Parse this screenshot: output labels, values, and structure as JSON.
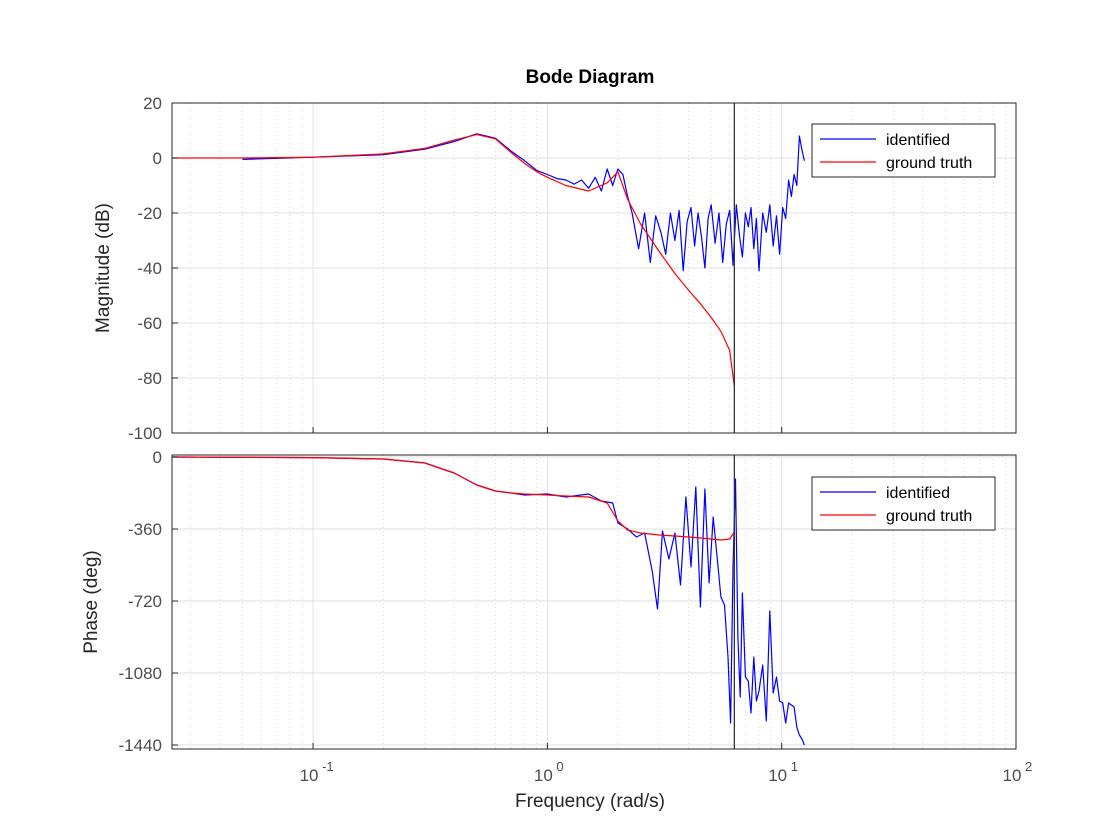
{
  "colors": {
    "identified": "#0000ff",
    "ground_truth": "#ff0000",
    "grid": "#e0e0e0",
    "marker_line": "#333333"
  },
  "chart_data": {
    "type": "line",
    "title": "Bode Diagram",
    "xlabel": "Frequency  (rad/s)",
    "xscale": "log",
    "xlim": [
      0.025,
      100
    ],
    "x_tick_labels": [
      {
        "base": "10",
        "exp": "-1",
        "value": 0.1
      },
      {
        "base": "10",
        "exp": "0",
        "value": 1
      },
      {
        "base": "10",
        "exp": "1",
        "value": 10
      },
      {
        "base": "10",
        "exp": "2",
        "value": 100
      }
    ],
    "marker_frequency": 6.28,
    "grid": true,
    "panels": [
      {
        "ylabel": "Magnitude (dB)",
        "ylim": [
          -100,
          20
        ],
        "yticks": [
          20,
          0,
          -20,
          -40,
          -60,
          -80,
          -100
        ],
        "ytick_labels": [
          "20",
          "0",
          "-20",
          "-40",
          "-60",
          "-80",
          "-100"
        ],
        "legend": {
          "position": "top-right",
          "entries": [
            "identified",
            "ground truth"
          ]
        },
        "series": [
          {
            "name": "ground truth",
            "x": [
              0.025,
              0.05,
              0.1,
              0.2,
              0.3,
              0.4,
              0.5,
              0.6,
              0.7,
              0.8,
              0.9,
              1.0,
              1.2,
              1.5,
              1.8,
              2.0,
              2.2,
              2.5,
              3.0,
              3.5,
              4.0,
              4.5,
              5.0,
              5.5,
              6.0,
              6.28
            ],
            "y": [
              0,
              0,
              0.3,
              1.5,
              3.5,
              6.5,
              8.5,
              7.0,
              2.0,
              -2.0,
              -5.0,
              -7.0,
              -10.0,
              -12.0,
              -9.0,
              -5.0,
              -15.0,
              -24.0,
              -34.0,
              -42.0,
              -48.0,
              -53.0,
              -58.0,
              -63.0,
              -70.0,
              -83.0
            ]
          },
          {
            "name": "identified",
            "x": [
              0.05,
              0.1,
              0.2,
              0.3,
              0.4,
              0.5,
              0.6,
              0.7,
              0.8,
              0.9,
              1.0,
              1.1,
              1.2,
              1.3,
              1.4,
              1.5,
              1.6,
              1.7,
              1.8,
              1.9,
              2.0,
              2.1,
              2.2,
              2.3,
              2.45,
              2.6,
              2.75,
              2.9,
              3.05,
              3.2,
              3.35,
              3.5,
              3.65,
              3.8,
              3.95,
              4.1,
              4.25,
              4.4,
              4.55,
              4.7,
              4.85,
              5.0,
              5.2,
              5.4,
              5.6,
              5.8,
              6.0,
              6.2,
              6.4,
              6.6,
              6.8,
              7.0,
              7.2,
              7.4,
              7.6,
              7.8,
              8.0,
              8.3,
              8.6,
              8.9,
              9.2,
              9.5,
              9.8,
              10.1,
              10.4,
              10.7,
              11.0,
              11.3,
              11.6,
              11.9,
              12.2,
              12.5
            ],
            "y": [
              -0.5,
              0.3,
              1.2,
              3.2,
              6.0,
              8.8,
              7.2,
              2.5,
              -1.0,
              -4.5,
              -6.0,
              -7.5,
              -8.0,
              -9.5,
              -8.0,
              -11.0,
              -7.0,
              -12.0,
              -4.0,
              -10.0,
              -4.0,
              -6.0,
              -14.0,
              -20.0,
              -33.0,
              -20.0,
              -38.0,
              -21.0,
              -27.0,
              -35.0,
              -20.0,
              -30.0,
              -19.0,
              -41.0,
              -23.0,
              -18.0,
              -32.0,
              -20.0,
              -29.0,
              -40.0,
              -22.0,
              -17.0,
              -31.0,
              -20.0,
              -38.0,
              -24.0,
              -19.0,
              -39.0,
              -17.0,
              -28.0,
              -36.0,
              -20.0,
              -25.0,
              -18.0,
              -33.0,
              -22.0,
              -41.0,
              -20.0,
              -27.0,
              -17.0,
              -32.0,
              -21.0,
              -35.0,
              -18.0,
              -22.0,
              -8.0,
              -14.0,
              -6.0,
              -10.0,
              8.0,
              3.0,
              -1.0
            ]
          }
        ]
      },
      {
        "ylabel": "Phase (deg)",
        "ylim": [
          -1460,
          10
        ],
        "yticks": [
          0,
          -360,
          -720,
          -1080,
          -1440
        ],
        "ytick_labels": [
          "0",
          "-360",
          "-720",
          "-1080",
          "-1440"
        ],
        "legend": {
          "position": "top-right",
          "entries": [
            "identified",
            "ground truth"
          ]
        },
        "series": [
          {
            "name": "ground truth",
            "x": [
              0.025,
              0.1,
              0.2,
              0.3,
              0.4,
              0.5,
              0.6,
              0.7,
              0.8,
              1.0,
              1.2,
              1.5,
              1.8,
              2.0,
              2.2,
              2.5,
              3.0,
              3.5,
              4.0,
              4.5,
              5.0,
              5.5,
              6.0,
              6.28
            ],
            "y": [
              0,
              -3,
              -10,
              -30,
              -80,
              -140,
              -170,
              -180,
              -185,
              -190,
              -195,
              -200,
              -230,
              -320,
              -365,
              -380,
              -390,
              -395,
              -400,
              -405,
              -410,
              -415,
              -410,
              -375
            ]
          },
          {
            "name": "identified",
            "x": [
              0.025,
              0.1,
              0.2,
              0.3,
              0.4,
              0.5,
              0.6,
              0.7,
              0.8,
              1.0,
              1.2,
              1.5,
              1.7,
              1.9,
              2.0,
              2.2,
              2.4,
              2.6,
              2.8,
              2.95,
              3.1,
              3.3,
              3.5,
              3.7,
              3.9,
              4.1,
              4.3,
              4.5,
              4.7,
              4.9,
              5.1,
              5.3,
              5.5,
              5.7,
              5.9,
              6.05,
              6.2,
              6.35,
              6.5,
              6.65,
              6.8,
              7.0,
              7.2,
              7.4,
              7.6,
              7.8,
              8.0,
              8.3,
              8.6,
              8.9,
              9.2,
              9.5,
              9.8,
              10.1,
              10.4,
              10.7,
              11.0,
              11.3,
              11.6,
              11.9,
              12.2,
              12.5
            ],
            "y": [
              0,
              -3,
              -10,
              -30,
              -80,
              -140,
              -170,
              -180,
              -190,
              -185,
              -200,
              -185,
              -220,
              -230,
              -330,
              -360,
              -400,
              -380,
              -570,
              -760,
              -370,
              -510,
              -380,
              -640,
              -200,
              -550,
              -150,
              -750,
              -160,
              -630,
              -300,
              -500,
              -700,
              -740,
              -1000,
              -1330,
              -550,
              -110,
              -900,
              -1200,
              -680,
              -1100,
              -1120,
              -1280,
              -1000,
              -1220,
              -1170,
              -1040,
              -1320,
              -770,
              -1180,
              -1100,
              -1220,
              -1230,
              -1330,
              -1230,
              -1240,
              -1250,
              -1350,
              -1390,
              -1410,
              -1440
            ]
          }
        ]
      }
    ]
  }
}
